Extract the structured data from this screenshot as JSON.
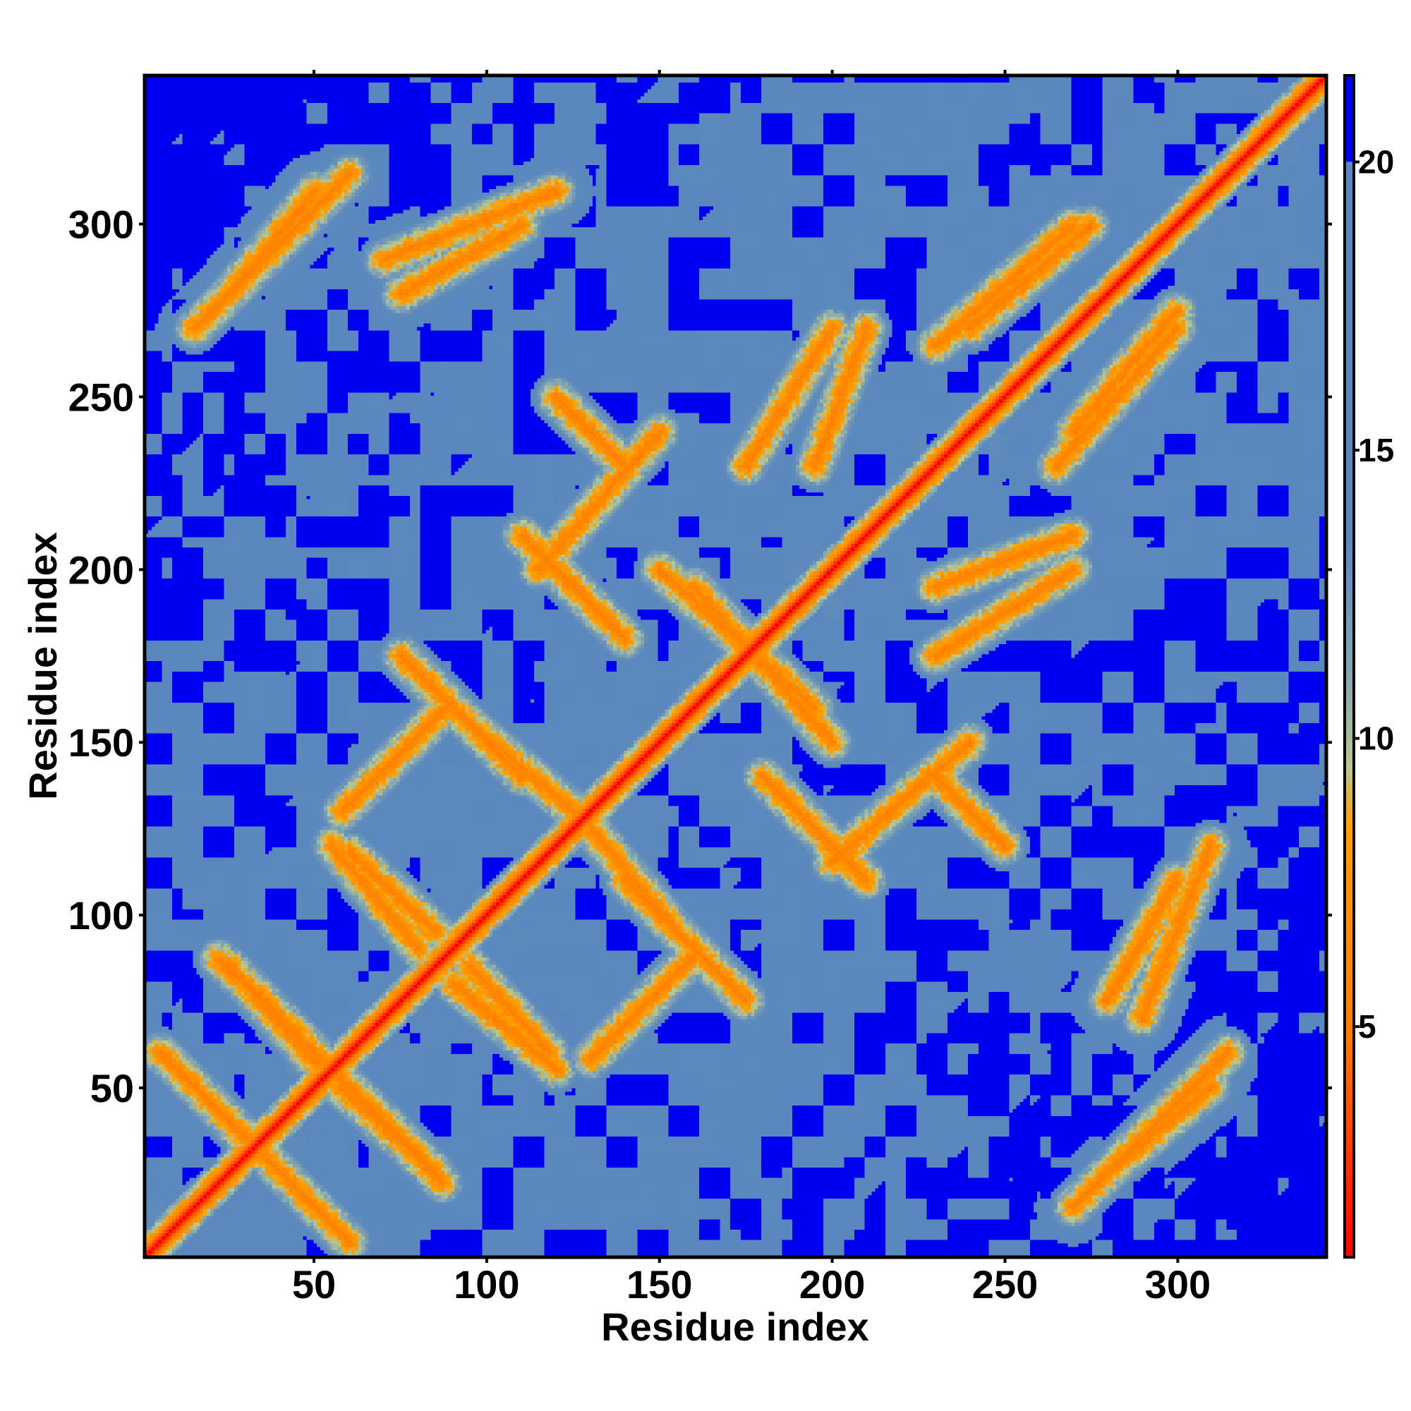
{
  "chart_data": {
    "type": "heatmap",
    "title": "",
    "xlabel": "Residue index",
    "ylabel": "Residue index",
    "xlim": [
      1,
      343
    ],
    "ylim": [
      1,
      343
    ],
    "x_ticks": [
      50,
      100,
      150,
      200,
      250,
      300
    ],
    "y_ticks": [
      50,
      100,
      150,
      200,
      250,
      300
    ],
    "colorbar": {
      "ticks": [
        5,
        10,
        15,
        20
      ],
      "range": [
        1,
        21.5
      ],
      "stops": [
        {
          "value": 1,
          "color": "#ff0000"
        },
        {
          "value": 5,
          "color": "#ff8000"
        },
        {
          "value": 8.5,
          "color": "#ffa000"
        },
        {
          "value": 9.5,
          "color": "#b8c890"
        },
        {
          "value": 11,
          "color": "#88a8b0"
        },
        {
          "value": 13.5,
          "color": "#5b88bd"
        },
        {
          "value": 20,
          "color": "#5a87be"
        },
        {
          "value": 20.01,
          "color": "#0000f0"
        },
        {
          "value": 21.5,
          "color": "#0000f0"
        }
      ]
    },
    "grid": false,
    "legend": "none",
    "value_semantics": "pairwise residue distance; values at or above 20 shown as saturated blue",
    "features": {
      "background_value": 21,
      "main_diagonal": {
        "from": [
          1,
          1
        ],
        "to": [
          343,
          343
        ]
      },
      "parallel_bands": [
        {
          "from": [
            5,
            60
          ],
          "to": [
            60,
            5
          ]
        },
        {
          "from": [
            22,
            87
          ],
          "to": [
            80,
            30
          ]
        },
        {
          "from": [
            57,
            50
          ],
          "to": [
            85,
            25
          ]
        },
        {
          "from": [
            60,
            118
          ],
          "to": [
            85,
            95
          ]
        },
        {
          "from": [
            90,
            80
          ],
          "to": [
            120,
            55
          ]
        },
        {
          "from": [
            95,
            155
          ],
          "to": [
            125,
            130
          ]
        },
        {
          "from": [
            130,
            58
          ],
          "to": [
            160,
            88
          ]
        },
        {
          "from": [
            140,
            110
          ],
          "to": [
            175,
            75
          ]
        },
        {
          "from": [
            110,
            210
          ],
          "to": [
            140,
            180
          ]
        },
        {
          "from": [
            120,
            250
          ],
          "to": [
            140,
            230
          ]
        },
        {
          "from": [
            15,
            270
          ],
          "to": [
            60,
            315
          ]
        },
        {
          "from": [
            70,
            290
          ],
          "to": [
            120,
            310
          ]
        },
        {
          "from": [
            160,
            195
          ],
          "to": [
            200,
            150
          ]
        },
        {
          "from": [
            175,
            230
          ],
          "to": [
            200,
            270
          ]
        },
        {
          "from": [
            200,
            115
          ],
          "to": [
            240,
            150
          ]
        },
        {
          "from": [
            230,
            195
          ],
          "to": [
            270,
            210
          ]
        },
        {
          "from": [
            240,
            270
          ],
          "to": [
            275,
            300
          ]
        },
        {
          "from": [
            265,
            230
          ],
          "to": [
            300,
            270
          ]
        },
        {
          "from": [
            280,
            25
          ],
          "to": [
            310,
            50
          ]
        },
        {
          "from": [
            280,
            75
          ],
          "to": [
            300,
            110
          ]
        }
      ]
    }
  }
}
